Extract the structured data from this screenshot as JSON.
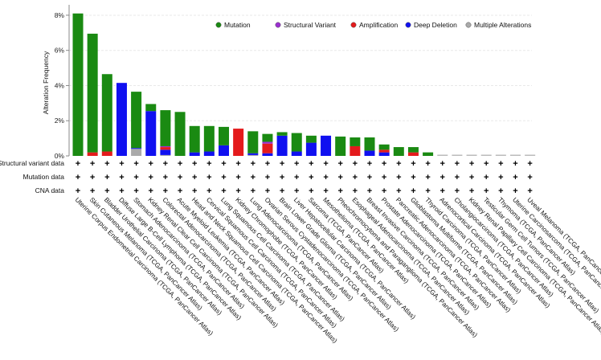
{
  "chart_data": {
    "type": "bar",
    "stacked": true,
    "title": "",
    "xlabel": "",
    "ylabel": "Alteration Frequency",
    "ylim": [
      0,
      8.5
    ],
    "yticks": [
      0,
      2,
      4,
      6,
      8
    ],
    "ytick_labels": [
      "0%",
      "2%",
      "4%",
      "6%",
      "8%"
    ],
    "grid": false,
    "legend_position": "top-right",
    "categories": [
      "Uterine Corpus Endometrial Carcinoma (TCGA, PanCancer Atlas)",
      "Skin Cutaneous Melanoma (TCGA, PanCancer Atlas)",
      "Bladder Urothelial Carcinoma (TCGA, PanCancer Atlas)",
      "Diffuse Large B-Cell Lymphoma (TCGA, PanCancer Atlas)",
      "Stomach Adenocarcinoma (TCGA, PanCancer Atlas)",
      "Kidney Renal Clear Cell Carcinoma (TCGA, PanCancer Atlas)",
      "Colorectal Adenocarcinoma (TCGA, PanCancer Atlas)",
      "Acute Myeloid Leukemia (TCGA, PanCancer Atlas)",
      "Head and Neck Squamous Cell Carcinoma (TCGA, PanCancer Atlas)",
      "Cervical Squamous Cell Carcinoma (TCGA, PanCancer Atlas)",
      "Lung Squamous Cell Carcinoma (TCGA, PanCancer Atlas)",
      "Kidney Chromophobe (TCGA, PanCancer Atlas)",
      "Lung Adenocarcinoma (TCGA, PanCancer Atlas)",
      "Ovarian Serous Cystadenocarcinoma (TCGA, PanCancer Atlas)",
      "Brain Lower Grade Glioma (TCGA, PanCancer Atlas)",
      "Liver Hepatocellular Carcinoma (TCGA, PanCancer Atlas)",
      "Sarcoma (TCGA, PanCancer Atlas)",
      "Mesothelioma (TCGA, PanCancer Atlas)",
      "Pheochromocytoma and Paraganglioma (TCGA, PanCancer Atlas)",
      "Esophageal Adenocarcinoma (TCGA, PanCancer Atlas)",
      "Breast Invasive Carcinoma (TCGA, PanCancer Atlas)",
      "Prostate Adenocarcinoma (TCGA, PanCancer Atlas)",
      "Pancreatic Adenocarcinoma (TCGA, PanCancer Atlas)",
      "Glioblastoma Multiforme (TCGA, PanCancer Atlas)",
      "Thyroid Carcinoma (TCGA, PanCancer Atlas)",
      "Adrenocortical Carcinoma (TCGA, PanCancer Atlas)",
      "Cholangiocarcinoma (TCGA, PanCancer Atlas)",
      "Kidney Renal Papillary Cell Carcinoma (TCGA, PanCancer Atlas)",
      "Testicular Germ Cell Tumors (TCGA, PanCancer Atlas)",
      "Thymoma (TCGA, PanCancer Atlas)",
      "Uterine Carcinosarcoma (TCGA, PanCancer Atlas)",
      "Uveal Melanoma (TCGA, PanCancer Atlas)"
    ],
    "series": [
      {
        "name": "Mutation",
        "color": "#1a8a12",
        "values": [
          8.1,
          6.75,
          4.4,
          0.0,
          3.2,
          0.4,
          2.05,
          2.5,
          1.5,
          1.45,
          1.05,
          0.0,
          1.25,
          0.45,
          0.2,
          1.05,
          0.4,
          0.0,
          1.1,
          0.5,
          0.75,
          0.3,
          0.5,
          0.3,
          0.2,
          0,
          0,
          0,
          0,
          0,
          0,
          0
        ]
      },
      {
        "name": "Structural Variant",
        "color": "#9b30d0",
        "values": [
          0,
          0,
          0,
          0,
          0,
          0,
          0.05,
          0,
          0,
          0,
          0,
          0,
          0,
          0.1,
          0,
          0,
          0,
          0,
          0,
          0,
          0,
          0,
          0,
          0,
          0,
          0,
          0,
          0,
          0,
          0,
          0,
          0
        ]
      },
      {
        "name": "Amplification",
        "color": "#e41a1c",
        "values": [
          0,
          0.2,
          0.25,
          0,
          0,
          0,
          0.15,
          0,
          0,
          0,
          0,
          1.55,
          0,
          0.55,
          0,
          0,
          0,
          0,
          0,
          0.55,
          0,
          0.15,
          0,
          0.2,
          0,
          0,
          0,
          0,
          0,
          0,
          0,
          0
        ]
      },
      {
        "name": "Deep Deletion",
        "color": "#1010f0",
        "values": [
          0,
          0,
          0,
          4.15,
          0.05,
          2.55,
          0.3,
          0,
          0.2,
          0.25,
          0.6,
          0,
          0.1,
          0.15,
          1.15,
          0.25,
          0.75,
          1.15,
          0,
          0,
          0.3,
          0.2,
          0,
          0,
          0,
          0,
          0,
          0,
          0,
          0,
          0,
          0
        ]
      },
      {
        "name": "Multiple Alterations",
        "color": "#aaaaaa",
        "values": [
          0,
          0,
          0,
          0,
          0.4,
          0,
          0.05,
          0,
          0,
          0,
          0,
          0,
          0.05,
          0,
          0,
          0,
          0,
          0,
          0,
          0,
          0,
          0,
          0,
          0,
          0,
          0,
          0,
          0,
          0,
          0,
          0,
          0
        ]
      }
    ],
    "profile_rows": [
      "Structural variant data",
      "Mutation data",
      "CNA data"
    ],
    "profile_marker": "+"
  }
}
